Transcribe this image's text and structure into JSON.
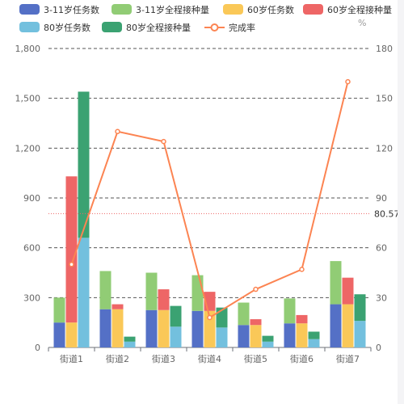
{
  "colors": {
    "background": "#ffffff",
    "grid": "#555555",
    "axis": "#6e7079",
    "ref_line": "#ee6666"
  },
  "chart_data": {
    "type": "bar",
    "title": "",
    "xlabel": "",
    "ylabel": "",
    "y2label": "%",
    "grid": true,
    "legend_position": "top",
    "categories": [
      "街道1",
      "街道2",
      "街道3",
      "街道4",
      "街道5",
      "街道6",
      "街道7"
    ],
    "ylim": [
      0,
      1800
    ],
    "y_ticks": [
      0,
      300,
      600,
      900,
      1200,
      1500,
      1800
    ],
    "y2lim": [
      0,
      180
    ],
    "y2_ticks": [
      0,
      30,
      60,
      90,
      120,
      150,
      180
    ],
    "y_tick_labels": [
      "0",
      "300",
      "600",
      "900",
      "1,200",
      "1,500",
      "1,800"
    ],
    "stack_groups": [
      [
        "3-11岁任务数",
        "3-11岁全程接种量"
      ],
      [
        "60岁任务数",
        "60岁全程接种量"
      ],
      [
        "80岁任务数",
        "80岁全程接种量"
      ]
    ],
    "series": [
      {
        "name": "3-11岁任务数",
        "type": "bar",
        "stack": "g1",
        "color": "#5470c6",
        "values": [
          150,
          230,
          225,
          220,
          135,
          145,
          260
        ]
      },
      {
        "name": "3-11岁全程接种量",
        "type": "bar",
        "stack": "g1",
        "color": "#91cc75",
        "values": [
          150,
          230,
          225,
          215,
          135,
          150,
          260
        ]
      },
      {
        "name": "60岁任务数",
        "type": "bar",
        "stack": "g2",
        "color": "#fac858",
        "values": [
          150,
          230,
          225,
          220,
          135,
          145,
          260
        ]
      },
      {
        "name": "60岁全程接种量",
        "type": "bar",
        "stack": "g2",
        "color": "#ee6666",
        "values": [
          880,
          30,
          125,
          115,
          35,
          50,
          160
        ]
      },
      {
        "name": "80岁任务数",
        "type": "bar",
        "stack": "g3",
        "color": "#73c0de",
        "values": [
          660,
          35,
          125,
          120,
          35,
          50,
          160
        ]
      },
      {
        "name": "80岁全程接种量",
        "type": "bar",
        "stack": "g3",
        "color": "#3ba272",
        "values": [
          880,
          30,
          125,
          120,
          35,
          45,
          160
        ]
      },
      {
        "name": "完成率",
        "type": "line",
        "axis": "right",
        "color": "#fc8452",
        "values": [
          50,
          130,
          124,
          18,
          35,
          47,
          160
        ]
      }
    ],
    "markline": {
      "value": 80.57,
      "label": "80.57",
      "axis": "right"
    }
  }
}
